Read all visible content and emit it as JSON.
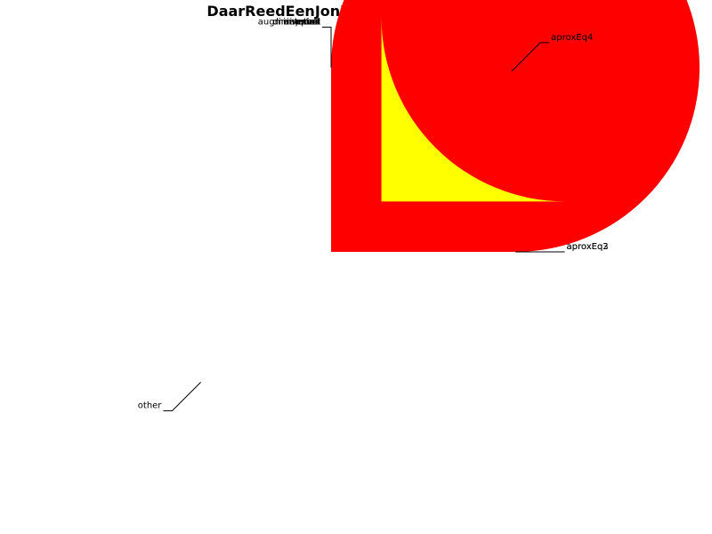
{
  "chart_data": {
    "type": "pie",
    "title": "DaarReedEenJonkheer:SIAR:pattern7",
    "slices": [
      {
        "label": "other",
        "value": 75,
        "color": "#ff0000",
        "exploded": false
      },
      {
        "label": "aprox",
        "value": 0,
        "color": "#ff0000",
        "exploded": false
      },
      {
        "label": "augmentation",
        "value": 0,
        "color": "#ff0000",
        "exploded": false
      },
      {
        "label": "diminution",
        "value": 0,
        "color": "#ff0000",
        "exploded": false
      },
      {
        "label": "exact",
        "value": 0,
        "color": "#ff0000",
        "exploded": false
      },
      {
        "label": "interval",
        "value": 0,
        "color": "#ff0000",
        "exploded": false
      },
      {
        "label": "inverted",
        "value": 0,
        "color": "#ff0000",
        "exploded": false
      },
      {
        "label": "aprox2",
        "value": 0,
        "color": "#ff0000",
        "exploded": false
      },
      {
        "label": "aproxEq4",
        "value": 25,
        "color": "#ffff00",
        "exploded": true
      },
      {
        "label": "aproxEq2",
        "value": 0,
        "color": "#ffff00",
        "exploded": false
      },
      {
        "label": "aproxEq3",
        "value": 0,
        "color": "#ffff00",
        "exploded": false
      }
    ]
  }
}
